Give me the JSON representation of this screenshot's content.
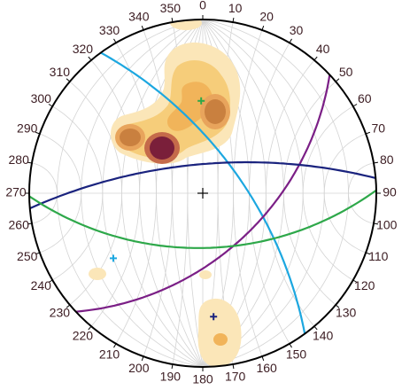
{
  "chart_data": {
    "type": "stereonet",
    "azimuth_labels": [
      0,
      10,
      20,
      30,
      40,
      50,
      60,
      70,
      80,
      90,
      100,
      110,
      120,
      130,
      140,
      150,
      160,
      170,
      180,
      190,
      200,
      210,
      220,
      230,
      240,
      250,
      260,
      270,
      280,
      290,
      300,
      310,
      320,
      330,
      340,
      350
    ],
    "planes": [
      {
        "color": "#1ca7e0",
        "dip_direction": 54,
        "dip": 65
      },
      {
        "color": "#7b1f86",
        "dip_direction": 137,
        "dip": 52
      },
      {
        "color": "#1a237e",
        "dip_direction": 355,
        "dip": 71
      },
      {
        "color": "#2ea84a",
        "dip_direction": 179,
        "dip": 55
      }
    ],
    "poles": [
      {
        "color": "#2ea84a",
        "trend": 359,
        "plunge": 34
      },
      {
        "color": "#1ca7e0",
        "trend": 234,
        "plunge": 25
      },
      {
        "color": "#1a237e",
        "trend": 175,
        "plunge": 19
      }
    ]
  }
}
